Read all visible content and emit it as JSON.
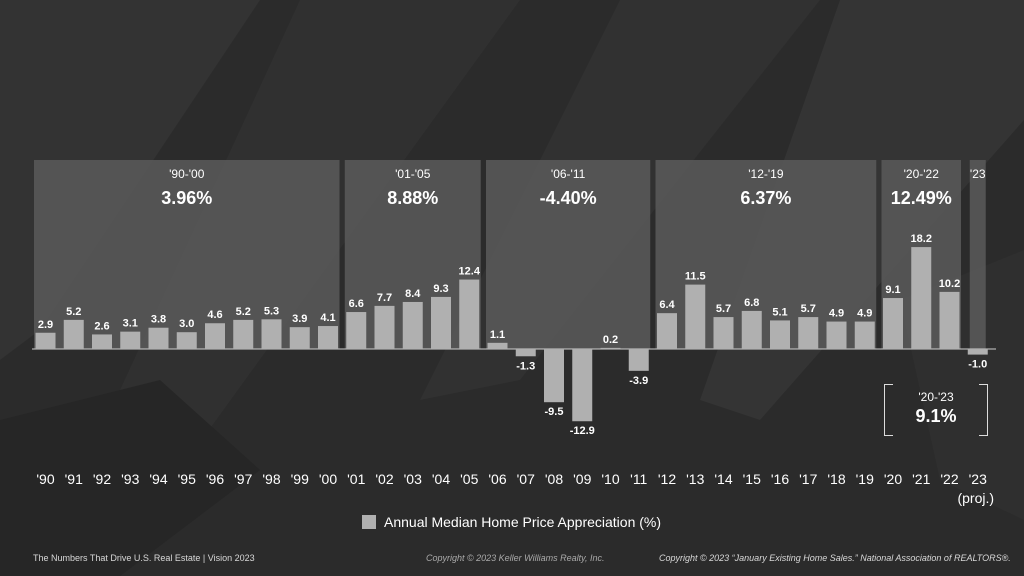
{
  "chart_data": {
    "type": "bar",
    "categories": [
      "'90",
      "'91",
      "'92",
      "'93",
      "'94",
      "'95",
      "'96",
      "'97",
      "'98",
      "'99",
      "'00",
      "'01",
      "'02",
      "'03",
      "'04",
      "'05",
      "'06",
      "'07",
      "'08",
      "'09",
      "'10",
      "'11",
      "'12",
      "'13",
      "'14",
      "'15",
      "'16",
      "'17",
      "'18",
      "'19",
      "'20",
      "'21",
      "'22",
      "'23"
    ],
    "category_sublabels": {
      "'23": "(proj.)"
    },
    "values": [
      2.9,
      5.2,
      2.6,
      3.1,
      3.8,
      3.0,
      4.6,
      5.2,
      5.3,
      3.9,
      4.1,
      6.6,
      7.7,
      8.4,
      9.3,
      12.4,
      1.1,
      -1.3,
      -9.5,
      -12.9,
      0.2,
      -3.9,
      6.4,
      11.5,
      5.7,
      6.8,
      5.1,
      5.7,
      4.9,
      4.9,
      9.1,
      18.2,
      10.2,
      -1.0
    ],
    "periods": [
      {
        "label": "'90-'00",
        "value": "3.96%",
        "start": 0,
        "end": 10
      },
      {
        "label": "'01-'05",
        "value": "8.88%",
        "start": 11,
        "end": 15
      },
      {
        "label": "'06-'11",
        "value": "-4.40%",
        "start": 16,
        "end": 21
      },
      {
        "label": "'12-'19",
        "value": "6.37%",
        "start": 22,
        "end": 29
      },
      {
        "label": "'20-'22",
        "value": "12.49%",
        "start": 30,
        "end": 32
      },
      {
        "label": "'23",
        "value": "",
        "start": 33,
        "end": 33
      }
    ],
    "series_name": "Annual Median Home Price Appreciation (%)",
    "colors": {
      "bar": "#b0b0b0",
      "panel": "#5a5a5a",
      "baseline": "#cfcfcf"
    }
  },
  "summary": {
    "label": "'20-'23",
    "value": "9.1%"
  },
  "legend": {
    "label": "Annual Median Home Price Appreciation (%)"
  },
  "footer": {
    "left": "The Numbers That Drive U.S. Real Estate  |  Vision 2023",
    "middle": "Copyright © 2023 Keller Williams Realty, Inc.",
    "right": "Copyright © 2023 “January Existing Home Sales.” National Association of REALTORS®."
  }
}
